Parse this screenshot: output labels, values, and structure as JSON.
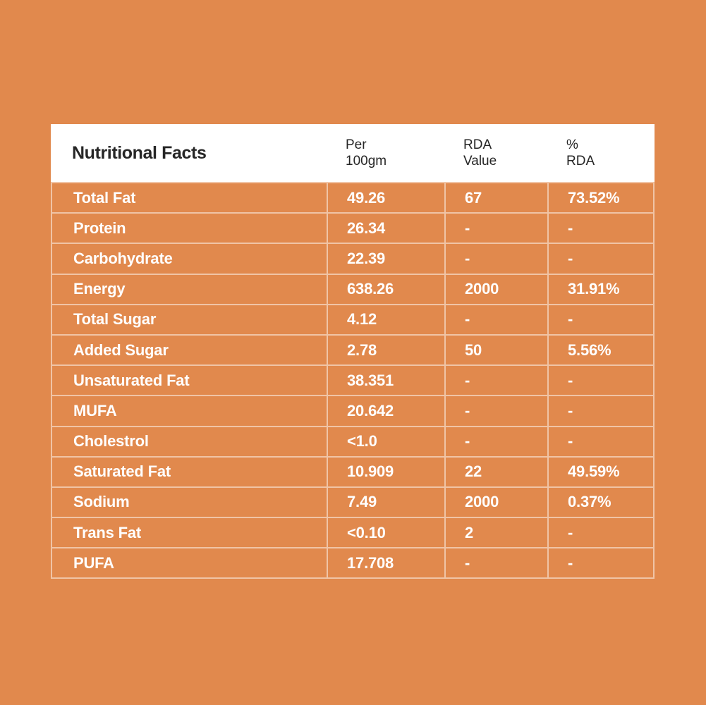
{
  "colors": {
    "background": "#E1894D",
    "grid_line": "rgba(255,255,255,0.5)",
    "header_background": "#FFFFFF",
    "header_text": "#262626",
    "cell_text": "#FFFFFF"
  },
  "table": {
    "title": "Nutritional Facts",
    "columns": [
      {
        "line1": "Per",
        "line2": "100gm"
      },
      {
        "line1": "RDA",
        "line2": "Value"
      },
      {
        "line1": "%",
        "line2": "RDA"
      }
    ],
    "rows": [
      {
        "label": "Total Fat",
        "per_100gm": "49.26",
        "rda_value": "67",
        "rda_percent": "73.52%"
      },
      {
        "label": "Protein",
        "per_100gm": "26.34",
        "rda_value": "-",
        "rda_percent": "-"
      },
      {
        "label": "Carbohydrate",
        "per_100gm": "22.39",
        "rda_value": "-",
        "rda_percent": "-"
      },
      {
        "label": "Energy",
        "per_100gm": "638.26",
        "rda_value": "2000",
        "rda_percent": "31.91%"
      },
      {
        "label": "Total Sugar",
        "per_100gm": "4.12",
        "rda_value": "-",
        "rda_percent": "-"
      },
      {
        "label": "Added Sugar",
        "per_100gm": "2.78",
        "rda_value": "50",
        "rda_percent": "5.56%"
      },
      {
        "label": "Unsaturated Fat",
        "per_100gm": "38.351",
        "rda_value": "-",
        "rda_percent": "-"
      },
      {
        "label": "MUFA",
        "per_100gm": "20.642",
        "rda_value": "-",
        "rda_percent": "-"
      },
      {
        "label": "Cholestrol",
        "per_100gm": "<1.0",
        "rda_value": "-",
        "rda_percent": "-"
      },
      {
        "label": "Saturated Fat",
        "per_100gm": "10.909",
        "rda_value": "22",
        "rda_percent": "49.59%"
      },
      {
        "label": "Sodium",
        "per_100gm": "7.49",
        "rda_value": "2000",
        "rda_percent": "0.37%"
      },
      {
        "label": "Trans Fat",
        "per_100gm": "<0.10",
        "rda_value": "2",
        "rda_percent": "-"
      },
      {
        "label": "PUFA",
        "per_100gm": "17.708",
        "rda_value": "-",
        "rda_percent": "-"
      }
    ]
  }
}
